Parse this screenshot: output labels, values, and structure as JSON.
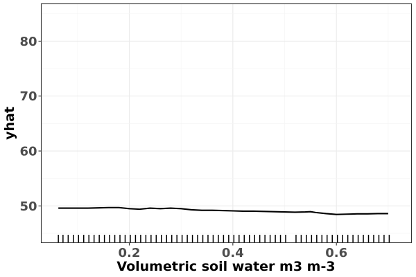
{
  "chart_data": {
    "type": "line",
    "title": "",
    "xlabel": "Volumetric soil water m3 m-3",
    "ylabel": "yhat",
    "xlim": [
      0.03,
      0.745
    ],
    "ylim": [
      43.3,
      86.8
    ],
    "x_ticks": [
      0.2,
      0.4,
      0.6
    ],
    "x_tick_labels": [
      "0.2",
      "0.4",
      "0.6"
    ],
    "y_ticks": [
      50,
      60,
      70,
      80
    ],
    "y_tick_labels": [
      "50",
      "60",
      "70",
      "80"
    ],
    "grid": true,
    "legend": "none",
    "series": [
      {
        "color": "#000000",
        "x": [
          0.063,
          0.08,
          0.1,
          0.12,
          0.14,
          0.16,
          0.18,
          0.2,
          0.22,
          0.24,
          0.26,
          0.28,
          0.3,
          0.32,
          0.34,
          0.36,
          0.38,
          0.4,
          0.42,
          0.44,
          0.46,
          0.48,
          0.5,
          0.52,
          0.54,
          0.55,
          0.56,
          0.58,
          0.6,
          0.62,
          0.64,
          0.66,
          0.68,
          0.7
        ],
        "y": [
          49.6,
          49.6,
          49.6,
          49.6,
          49.65,
          49.7,
          49.7,
          49.5,
          49.4,
          49.6,
          49.5,
          49.6,
          49.5,
          49.3,
          49.2,
          49.2,
          49.15,
          49.1,
          49.05,
          49.05,
          49.0,
          48.95,
          48.9,
          48.85,
          48.9,
          48.95,
          48.8,
          48.6,
          48.45,
          48.5,
          48.55,
          48.55,
          48.6,
          48.6
        ]
      }
    ],
    "rug_x": [
      0.063,
      0.072,
      0.082,
      0.092,
      0.102,
      0.112,
      0.122,
      0.132,
      0.142,
      0.152,
      0.162,
      0.172,
      0.182,
      0.192,
      0.202,
      0.212,
      0.222,
      0.232,
      0.242,
      0.252,
      0.262,
      0.272,
      0.282,
      0.292,
      0.302,
      0.312,
      0.322,
      0.332,
      0.342,
      0.352,
      0.362,
      0.372,
      0.382,
      0.392,
      0.402,
      0.412,
      0.422,
      0.432,
      0.442,
      0.452,
      0.462,
      0.472,
      0.482,
      0.492,
      0.502,
      0.522,
      0.532,
      0.542,
      0.552,
      0.562,
      0.572,
      0.582,
      0.592,
      0.602,
      0.612,
      0.622,
      0.632,
      0.642,
      0.652,
      0.662,
      0.672,
      0.682,
      0.692,
      0.702
    ]
  }
}
